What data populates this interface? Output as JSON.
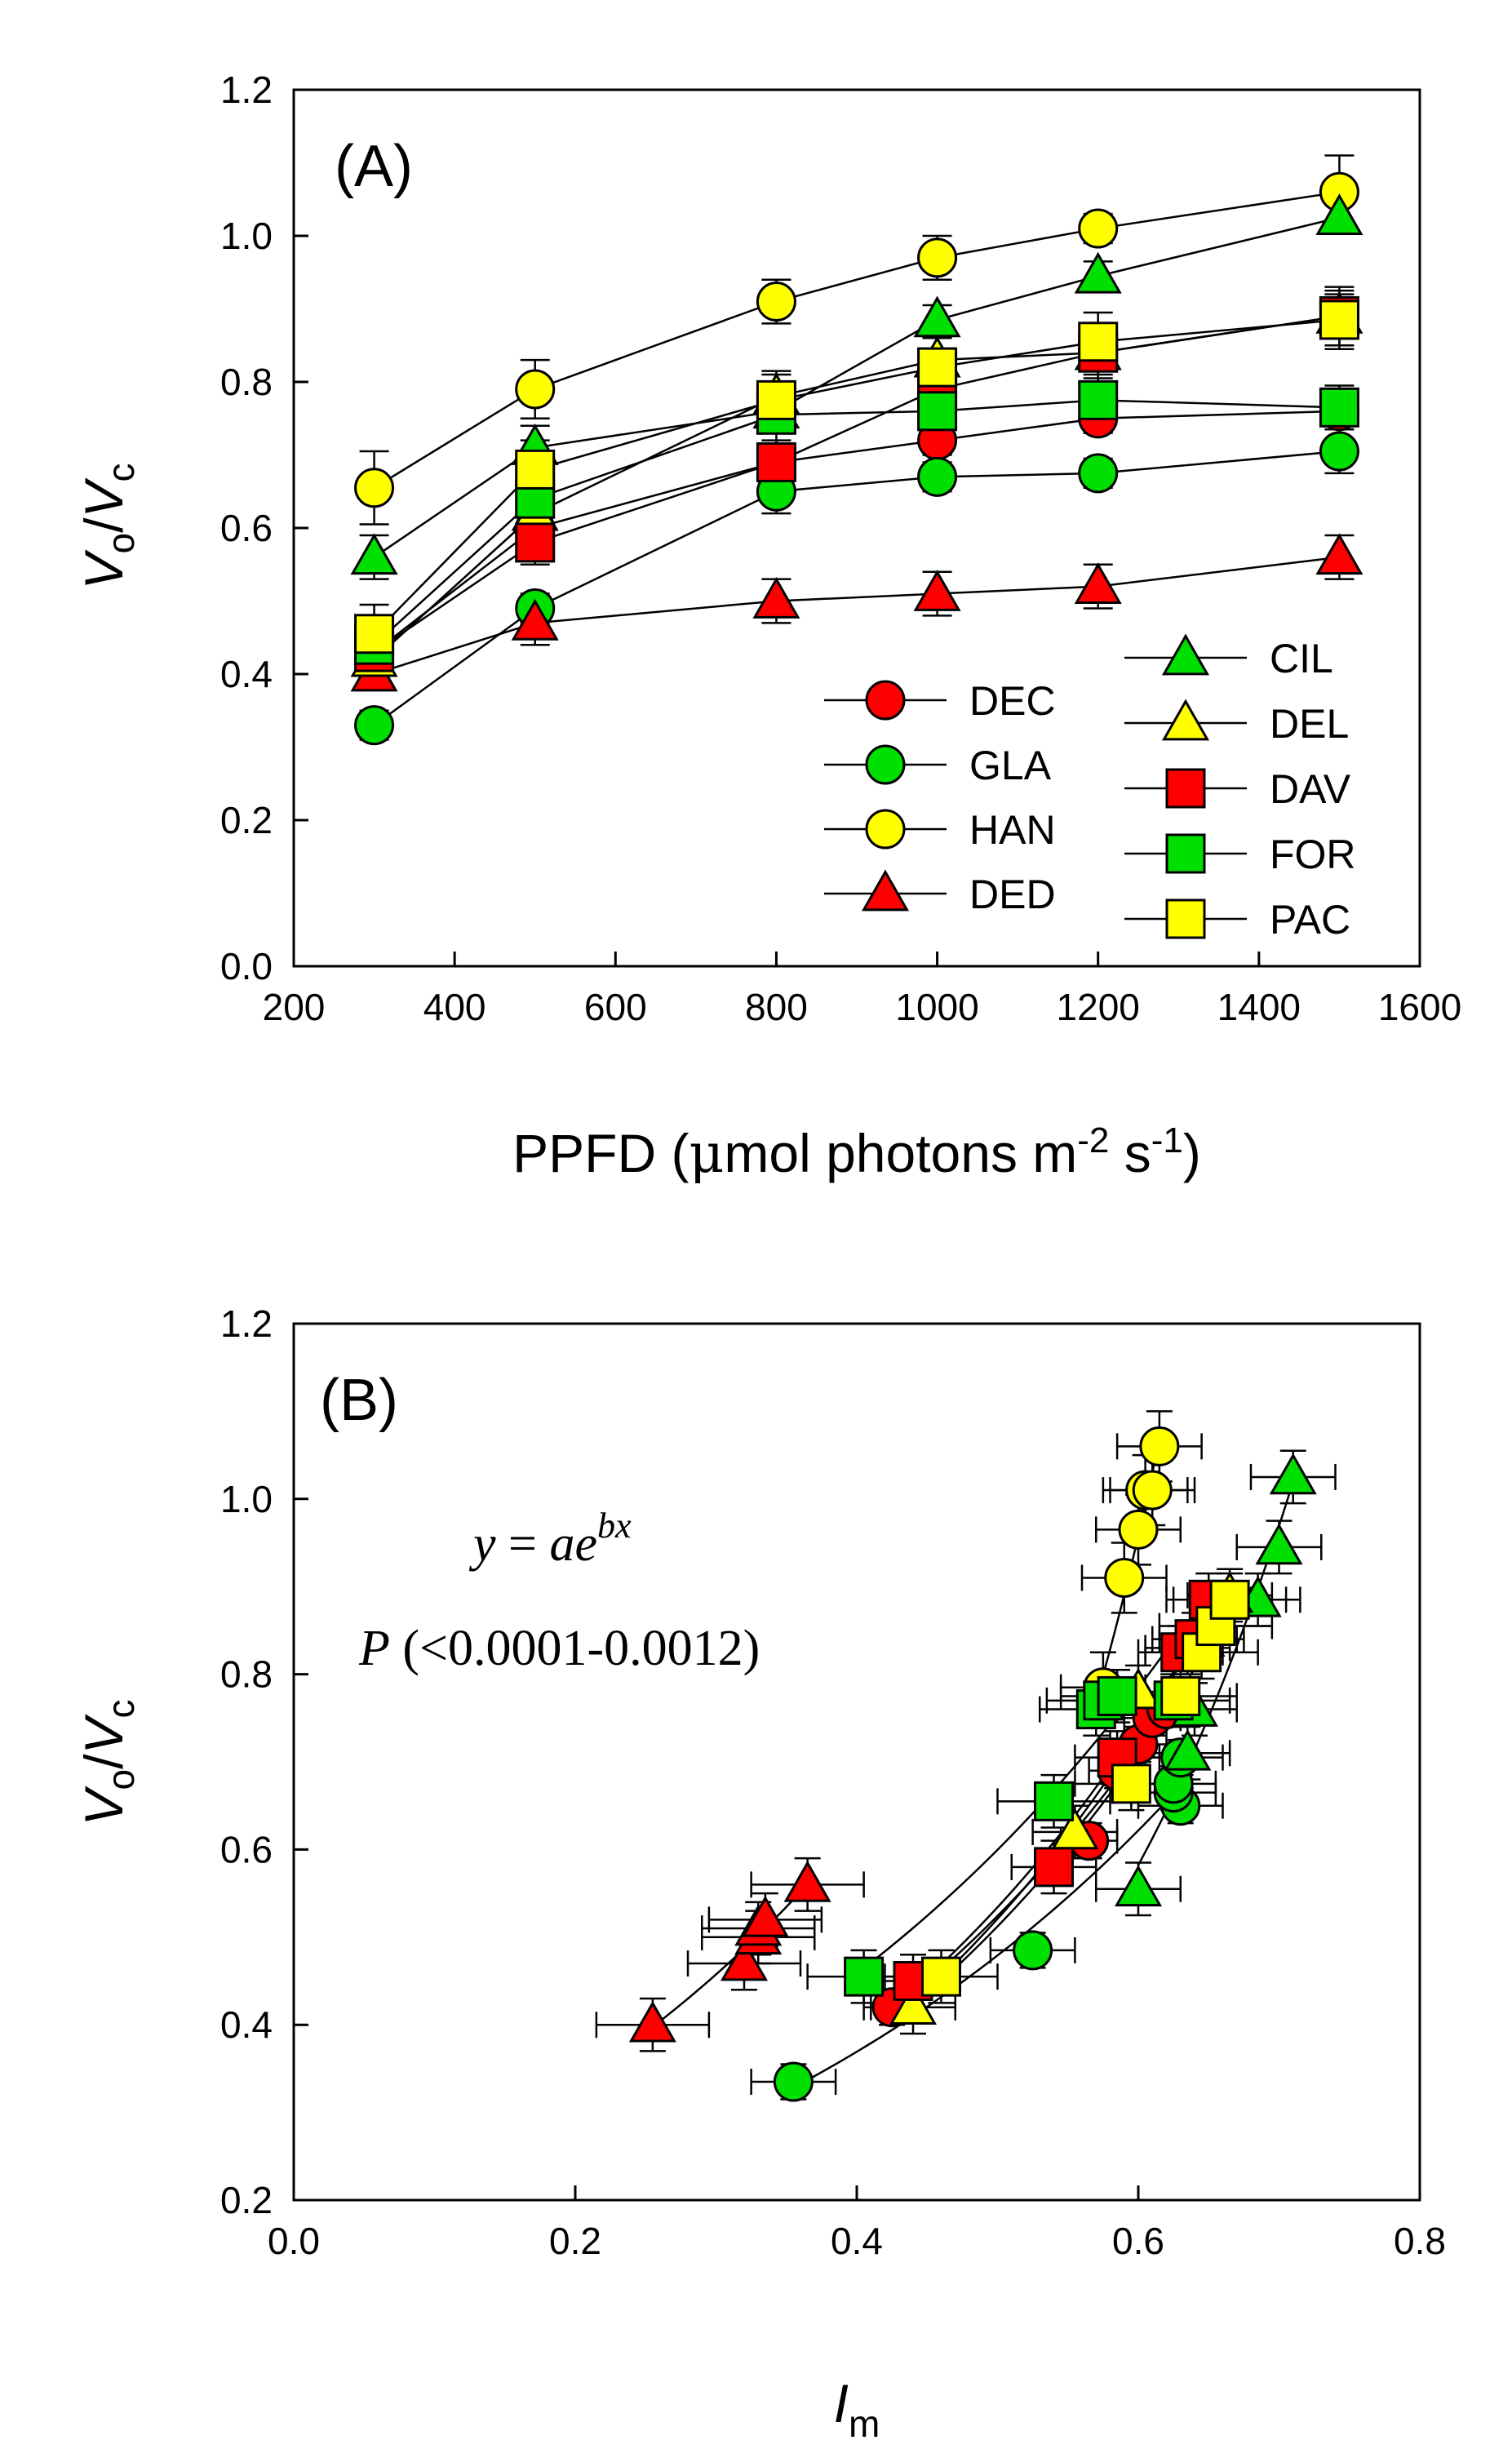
{
  "chart_data": [
    {
      "type": "line",
      "panel_label": "(A)",
      "xlabel": {
        "main": "PPFD (",
        "mu": "μ",
        "rest": "mol photons m",
        "sup1": "-2",
        "mid": " s",
        "sup2": "-1",
        "end": ")"
      },
      "ylabel": {
        "a": "V",
        "a_sub": "o",
        "slash": "/",
        "b": "V",
        "b_sub": "c"
      },
      "xlim": [
        200,
        1600
      ],
      "ylim": [
        0.0,
        1.2
      ],
      "xticks": [
        "200",
        "400",
        "600",
        "800",
        "1000",
        "1200",
        "1400",
        "1600"
      ],
      "yticks": [
        "0.0",
        "0.2",
        "0.4",
        "0.6",
        "0.8",
        "1.0",
        "1.2"
      ],
      "x": [
        300,
        500,
        800,
        1000,
        1200,
        1500
      ],
      "series": [
        {
          "name": "DEC",
          "marker": "circle",
          "color": "#ff0000",
          "values": [
            0.43,
            0.6,
            0.69,
            0.72,
            0.75,
            0.76
          ],
          "err": [
            0.02,
            0.02,
            0.02,
            0.02,
            0.02,
            0.02
          ]
        },
        {
          "name": "GLA",
          "marker": "circle",
          "color": "#00e000",
          "values": [
            0.33,
            0.49,
            0.65,
            0.67,
            0.675,
            0.705
          ],
          "err": [
            0.02,
            0.02,
            0.03,
            0.02,
            0.02,
            0.03
          ]
        },
        {
          "name": "HAN",
          "marker": "circle",
          "color": "#ffff00",
          "values": [
            0.655,
            0.79,
            0.91,
            0.97,
            1.01,
            1.06
          ],
          "err": [
            0.05,
            0.04,
            0.03,
            0.03,
            0.02,
            0.05
          ]
        },
        {
          "name": "DED",
          "marker": "triangle",
          "color": "#ff0000",
          "values": [
            0.4,
            0.47,
            0.5,
            0.51,
            0.52,
            0.56
          ],
          "err": [
            0.02,
            0.03,
            0.03,
            0.03,
            0.03,
            0.03
          ]
        },
        {
          "name": "CIL",
          "marker": "triangle",
          "color": "#00e000",
          "values": [
            0.56,
            0.71,
            0.76,
            0.885,
            0.945,
            1.025
          ],
          "err": [
            0.03,
            0.03,
            0.03,
            0.02,
            0.02,
            0.02
          ]
        },
        {
          "name": "DEL",
          "marker": "triangle",
          "color": "#ffff00",
          "values": [
            0.42,
            0.62,
            0.78,
            0.83,
            0.84,
            0.89
          ],
          "err": [
            0.02,
            0.03,
            0.03,
            0.03,
            0.03,
            0.03
          ]
        },
        {
          "name": "DAV",
          "marker": "square",
          "color": "#ff0000",
          "values": [
            0.43,
            0.58,
            0.69,
            0.79,
            0.84,
            0.89
          ],
          "err": [
            0.03,
            0.03,
            0.03,
            0.04,
            0.04,
            0.04
          ]
        },
        {
          "name": "FOR",
          "marker": "square",
          "color": "#00e000",
          "values": [
            0.44,
            0.64,
            0.755,
            0.76,
            0.775,
            0.765
          ],
          "err": [
            0.03,
            0.03,
            0.04,
            0.04,
            0.03,
            0.03
          ]
        },
        {
          "name": "PAC",
          "marker": "square",
          "color": "#ffff00",
          "values": [
            0.455,
            0.68,
            0.775,
            0.82,
            0.855,
            0.885
          ],
          "err": [
            0.04,
            0.04,
            0.04,
            0.04,
            0.04,
            0.04
          ]
        }
      ],
      "legend": {
        "position": "lower-right",
        "columns": [
          [
            "DEC",
            "GLA",
            "HAN",
            "DED"
          ],
          [
            "CIL",
            "DEL",
            "DAV",
            "FOR",
            "PAC"
          ]
        ]
      }
    },
    {
      "type": "scatter",
      "panel_label": "(B)",
      "xlabel": {
        "main": "I",
        "sub": "m"
      },
      "ylabel": {
        "a": "V",
        "a_sub": "o",
        "slash": "/",
        "b": "V",
        "b_sub": "c"
      },
      "xlim": [
        0.0,
        0.8
      ],
      "ylim": [
        0.2,
        1.2
      ],
      "xticks": [
        "0.0",
        "0.2",
        "0.4",
        "0.6",
        "0.8"
      ],
      "yticks": [
        "0.2",
        "0.4",
        "0.6",
        "0.8",
        "1.0",
        "1.2"
      ],
      "annotation_formula": {
        "y": "y",
        "eq": " = ",
        "a": "ae",
        "sup": "bx"
      },
      "annotation_p": {
        "p": "P",
        "rest": " (<0.0001-0.0012)"
      },
      "series": [
        {
          "name": "DEC",
          "marker": "circle",
          "color": "#ff0000",
          "x": [
            0.425,
            0.565,
            0.585,
            0.6,
            0.61,
            0.62
          ],
          "y": [
            0.42,
            0.61,
            0.69,
            0.72,
            0.75,
            0.76
          ],
          "xerr": 0.02,
          "yerr": 0.02
        },
        {
          "name": "GLA",
          "marker": "circle",
          "color": "#00e000",
          "x": [
            0.355,
            0.525,
            0.63,
            0.625,
            0.625,
            0.63
          ],
          "y": [
            0.335,
            0.485,
            0.65,
            0.665,
            0.675,
            0.705
          ],
          "xerr": 0.03,
          "yerr": 0.02
        },
        {
          "name": "HAN",
          "marker": "circle",
          "color": "#ffff00",
          "x": [
            0.575,
            0.59,
            0.6,
            0.605,
            0.61,
            0.615
          ],
          "y": [
            0.785,
            0.91,
            0.965,
            1.01,
            1.01,
            1.06
          ],
          "xerr": 0.03,
          "yerr": 0.04
        },
        {
          "name": "DED",
          "marker": "triangle",
          "color": "#ff0000",
          "x": [
            0.255,
            0.32,
            0.33,
            0.33,
            0.335,
            0.365
          ],
          "y": [
            0.4,
            0.47,
            0.5,
            0.51,
            0.52,
            0.56
          ],
          "xerr": 0.04,
          "yerr": 0.03
        },
        {
          "name": "CIL",
          "marker": "triangle",
          "color": "#00e000",
          "x": [
            0.6,
            0.635,
            0.64,
            0.685,
            0.7,
            0.71
          ],
          "y": [
            0.555,
            0.71,
            0.76,
            0.885,
            0.945,
            1.025
          ],
          "xerr": 0.03,
          "yerr": 0.03
        },
        {
          "name": "DEL",
          "marker": "triangle",
          "color": "#ffff00",
          "x": [
            0.44,
            0.555,
            0.6,
            0.635,
            0.645,
            0.665
          ],
          "y": [
            0.42,
            0.62,
            0.78,
            0.83,
            0.84,
            0.89
          ],
          "xerr": 0.03,
          "yerr": 0.03
        },
        {
          "name": "DAV",
          "marker": "square",
          "color": "#ff0000",
          "x": [
            0.44,
            0.54,
            0.585,
            0.63,
            0.64,
            0.65
          ],
          "y": [
            0.45,
            0.58,
            0.705,
            0.825,
            0.84,
            0.885
          ],
          "xerr": 0.03,
          "yerr": 0.03
        },
        {
          "name": "FOR",
          "marker": "square",
          "color": "#00e000",
          "x": [
            0.405,
            0.54,
            0.57,
            0.575,
            0.585,
            0.625
          ],
          "y": [
            0.455,
            0.655,
            0.76,
            0.77,
            0.775,
            0.77
          ],
          "xerr": 0.04,
          "yerr": 0.03
        },
        {
          "name": "PAC",
          "marker": "square",
          "color": "#ffff00",
          "x": [
            0.46,
            0.595,
            0.63,
            0.645,
            0.655,
            0.665
          ],
          "y": [
            0.455,
            0.675,
            0.775,
            0.825,
            0.855,
            0.885
          ],
          "xerr": 0.04,
          "yerr": 0.03
        }
      ]
    }
  ]
}
